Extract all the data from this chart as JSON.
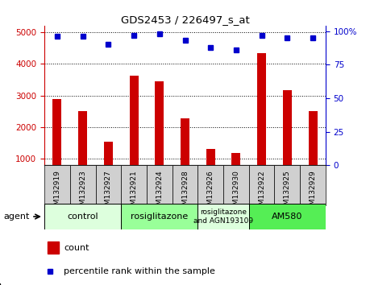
{
  "title": "GDS2453 / 226497_s_at",
  "samples": [
    "GSM132919",
    "GSM132923",
    "GSM132927",
    "GSM132921",
    "GSM132924",
    "GSM132928",
    "GSM132926",
    "GSM132930",
    "GSM132922",
    "GSM132925",
    "GSM132929"
  ],
  "counts": [
    2900,
    2500,
    1550,
    3620,
    3450,
    2270,
    1320,
    1200,
    4330,
    3160,
    2500
  ],
  "percentile_ranks": [
    96,
    96,
    90,
    97,
    98,
    93,
    88,
    86,
    97,
    95,
    95
  ],
  "bar_color": "#cc0000",
  "dot_color": "#0000cc",
  "ylim_left": [
    800,
    5200
  ],
  "ylim_right": [
    0,
    104
  ],
  "yticks_left": [
    1000,
    2000,
    3000,
    4000,
    5000
  ],
  "ytick_labels_left": [
    "1000",
    "2000",
    "3000",
    "4000",
    "5000"
  ],
  "yticks_right": [
    0,
    25,
    50,
    75,
    100
  ],
  "ytick_labels_right": [
    "0",
    "25",
    "50",
    "75",
    "100%"
  ],
  "groups": [
    {
      "label": "control",
      "start": 0,
      "end": 3,
      "color": "#ddffdd"
    },
    {
      "label": "rosiglitazone",
      "start": 3,
      "end": 6,
      "color": "#99ff99"
    },
    {
      "label": "rosiglitazone\nand AGN193109",
      "start": 6,
      "end": 8,
      "color": "#ddffdd"
    },
    {
      "label": "AM580",
      "start": 8,
      "end": 11,
      "color": "#55ee55"
    }
  ],
  "bar_color_red": "#cc0000",
  "dot_color_blue": "#0000cc",
  "legend_count_label": "count",
  "legend_pct_label": "percentile rank within the sample",
  "plot_bg_color": "#ffffff",
  "grid_color": "#000000",
  "tick_bg_color": "#cccccc"
}
